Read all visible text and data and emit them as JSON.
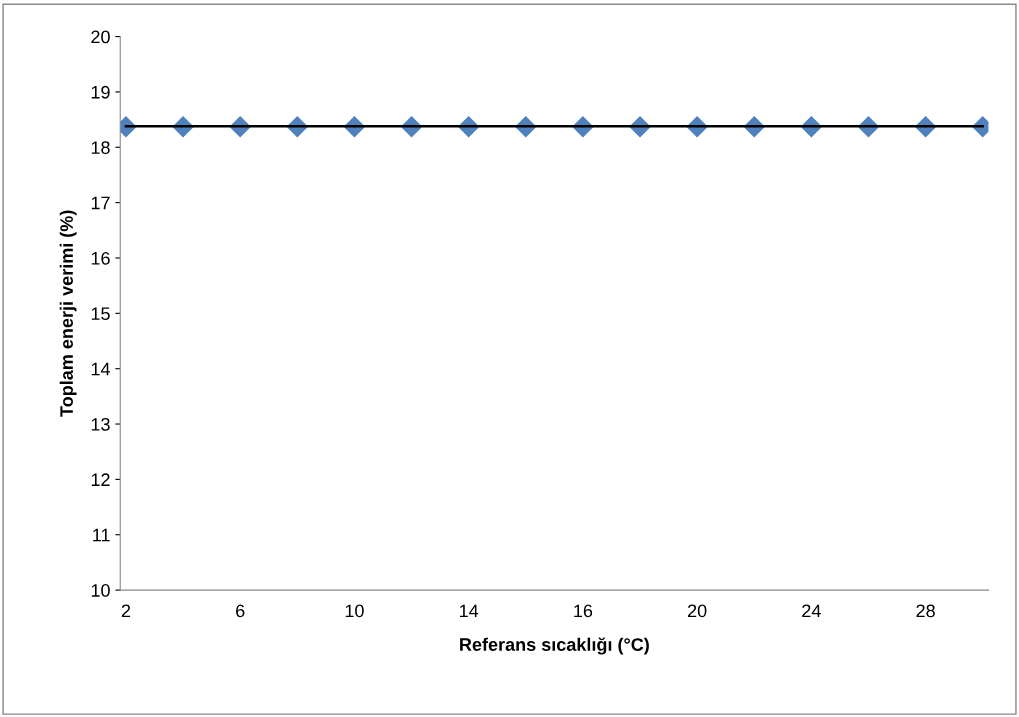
{
  "chart_data": {
    "type": "line",
    "xlabel": "Referans sıcaklığı (°C)",
    "ylabel": "Toplam enerji verimi (%)",
    "categories": [
      "2",
      null,
      "6",
      null,
      "10",
      null,
      "14",
      null,
      "16",
      null,
      "20",
      null,
      "24",
      null,
      "28",
      null
    ],
    "series": [
      {
        "type": "scatter",
        "color": "#4f81bd",
        "marker": "diamond",
        "values": [
          18.37,
          18.37,
          18.37,
          18.37,
          18.37,
          18.37,
          18.37,
          18.37,
          18.37,
          18.37,
          18.37,
          18.37,
          18.37,
          18.37,
          18.37,
          18.37
        ]
      },
      {
        "color": "#000000",
        "marker": "none",
        "values": [
          18.38,
          18.38,
          18.38,
          18.38,
          18.38,
          18.38,
          18.38,
          18.38,
          18.38,
          18.38,
          18.38,
          18.38,
          18.38,
          18.38,
          18.38,
          18.38
        ]
      }
    ],
    "ylim": [
      10,
      20
    ],
    "yticks": [
      10,
      11,
      12,
      13,
      14,
      15,
      16,
      17,
      18,
      19,
      20
    ],
    "grid": false,
    "legend": false
  }
}
